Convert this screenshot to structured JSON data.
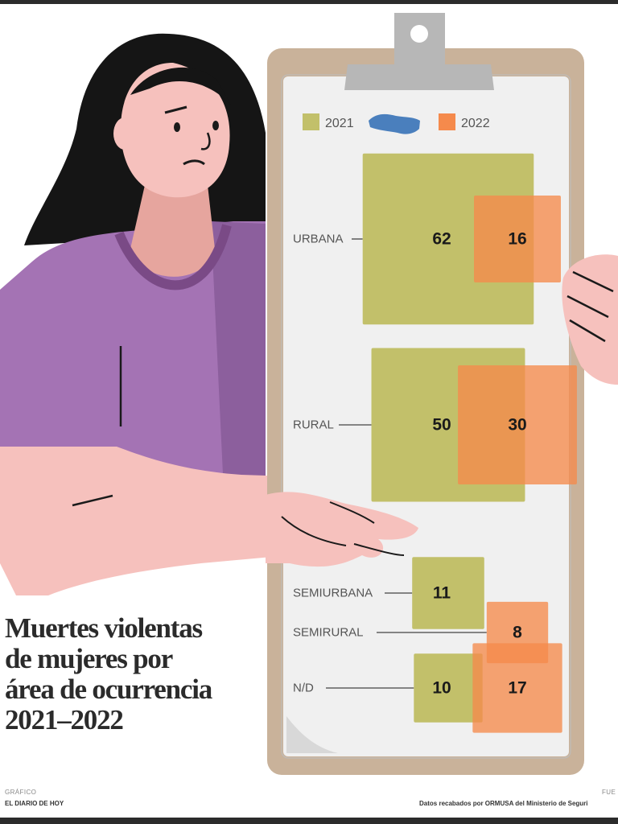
{
  "chart_data": {
    "type": "proportional-area",
    "title": [
      "Muertes violentas",
      "de mujeres por",
      "área de ocurrencia",
      "2021–2022"
    ],
    "series": [
      {
        "name": "2021",
        "color": "#c2c06a"
      },
      {
        "name": "2022",
        "color": "#f58a4c"
      }
    ],
    "categories": [
      "URBANA",
      "RURAL",
      "SEMIURBANA",
      "SEMIRURAL",
      "N/D"
    ],
    "values": {
      "2021": [
        62,
        50,
        11,
        null,
        10
      ],
      "2022": [
        16,
        30,
        null,
        8,
        17
      ]
    },
    "overlap_color": "#c65a2c",
    "map_icon": "el-salvador-map-icon"
  },
  "footer": {
    "credit_kicker": "GRÁFICO",
    "credit_name": "EL DIARIO DE HOY",
    "source_kicker": "FUE",
    "source_text": "Datos recabados por ORMUSA del Ministerio de Seguri"
  }
}
